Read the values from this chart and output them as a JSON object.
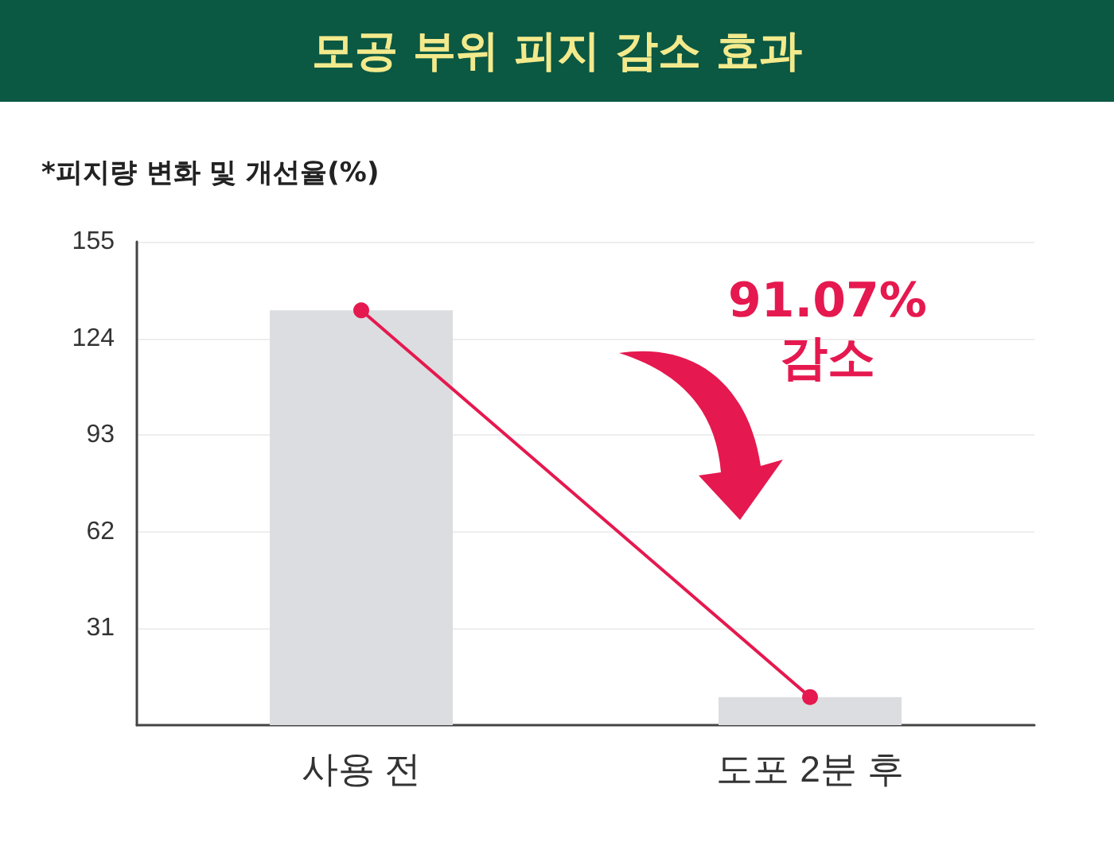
{
  "chart_data": {
    "type": "bar",
    "title": "모공 부위 피지 감소 효과",
    "ylabel": "*피지량 변화 및 개선율(%)",
    "categories": [
      "사용 전",
      "도포 2분 후"
    ],
    "series": [
      {
        "color": "#dcdde0",
        "values": [
          133,
          9
        ]
      },
      {
        "type": "line",
        "color": "#e5194f",
        "values": [
          133,
          9
        ]
      }
    ],
    "ylim": [
      0,
      155
    ],
    "yticks": [
      31,
      62,
      93,
      124,
      155
    ],
    "grid": "y",
    "marker": "circle",
    "annotations": [
      "91.07%",
      "감소"
    ]
  }
}
